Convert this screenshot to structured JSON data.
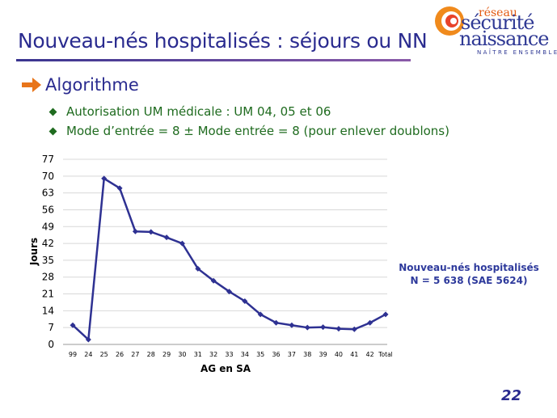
{
  "slide": {
    "title": "Nouveau-nés hospitalisés : séjours ou NN",
    "section_title": "Algorithme",
    "bullets": [
      "Autorisation UM médicale : UM 04, 05 et 06",
      "Mode d’entrée = 8 ± Mode entrée = 8 (pour enlever doublons)"
    ],
    "note_line1": "Nouveau-nés hospitalisés",
    "note_line2": "N = 5 638 (SAE 5624)",
    "page_number": "22",
    "logo": {
      "word_top": "réseau",
      "word1": "sécurité",
      "word2": "naissance",
      "tagline": "NAÎTRE ENSEMBLE"
    },
    "colors": {
      "title": "#2a2b8f",
      "bullet_text": "#1f6b1f",
      "arrow": "#e8751a",
      "series": "#2e3192"
    },
    "icons": {
      "section": "arrow-right-icon",
      "bullet": "diamond-bullet-icon"
    }
  },
  "chart_data": {
    "type": "line",
    "title": "",
    "xlabel": "AG en SA",
    "ylabel": "Jours",
    "categories": [
      "99",
      "24",
      "25",
      "26",
      "27",
      "28",
      "29",
      "30",
      "31",
      "32",
      "33",
      "34",
      "35",
      "36",
      "37",
      "38",
      "39",
      "40",
      "41",
      "42",
      "Total"
    ],
    "series": [
      {
        "values": [
          8,
          2,
          69,
          65,
          47,
          46.8,
          44.5,
          42,
          31.5,
          26.5,
          22,
          18,
          12.5,
          9,
          8,
          7,
          7.2,
          6.5,
          6.3,
          9,
          12.5
        ]
      }
    ],
    "ylim": [
      0,
      77
    ],
    "yticks": [
      0,
      7,
      14,
      21,
      28,
      35,
      42,
      49,
      56,
      63,
      70,
      77
    ],
    "grid": true,
    "legend": "none"
  }
}
